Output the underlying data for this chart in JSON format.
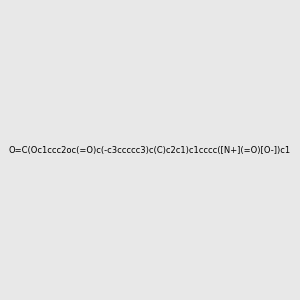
{
  "smiles": "O=C(Oc1ccc2oc(=O)c(-c3ccccc3)c(C)c2c1)c1cccc([N+](=O)[O-])c1",
  "background_color": "#e8e8e8",
  "bond_color": "#000000",
  "atom_colors": {
    "O": "#ff0000",
    "N": "#0000ff"
  },
  "figsize": [
    3.0,
    3.0
  ],
  "dpi": 100
}
